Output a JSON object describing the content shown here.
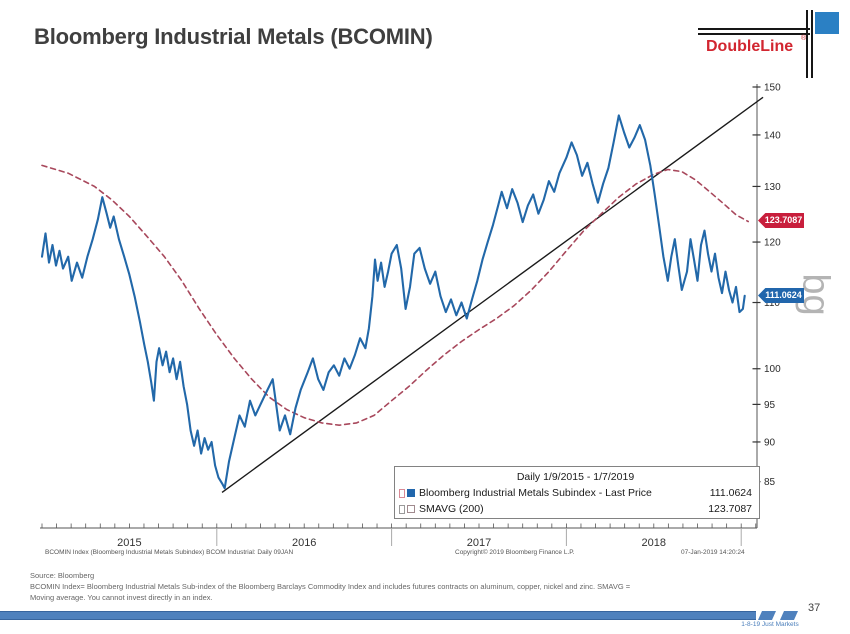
{
  "header": {
    "title": "Bloomberg Industrial Metals (BCOMIN)",
    "logo_text": "DoubleLine",
    "logo_reg": "®"
  },
  "chart_data": {
    "type": "line",
    "title": "Bloomberg Industrial Metals (BCOMIN)",
    "x_axis": {
      "start_label_year": "2015",
      "years": [
        {
          "label": "2015",
          "center_t": 0.5
        },
        {
          "label": "2016",
          "center_t": 1.5
        },
        {
          "label": "2017",
          "center_t": 2.5
        },
        {
          "label": "2018",
          "center_t": 3.5
        }
      ],
      "year_boundaries_t": [
        1,
        2,
        3,
        4
      ],
      "minor_ticks_months": 49
    },
    "y_axis": {
      "scale": "log",
      "ticks": [
        85,
        90,
        95,
        100,
        110,
        120,
        130,
        140,
        150
      ],
      "range": [
        79.5,
        152
      ]
    },
    "series": [
      {
        "name": "Bloomberg Industrial Metals Subindex - Last Price",
        "color": "#2268a9",
        "style": "solid",
        "last_value": 111.0624,
        "points": [
          [
            0.0,
            117.5
          ],
          [
            0.02,
            121.5
          ],
          [
            0.04,
            116.5
          ],
          [
            0.06,
            119.5
          ],
          [
            0.08,
            116.0
          ],
          [
            0.1,
            118.5
          ],
          [
            0.12,
            115.5
          ],
          [
            0.15,
            117.5
          ],
          [
            0.17,
            113.5
          ],
          [
            0.2,
            116.5
          ],
          [
            0.23,
            114.0
          ],
          [
            0.26,
            117.5
          ],
          [
            0.29,
            120.5
          ],
          [
            0.32,
            124.0
          ],
          [
            0.345,
            128.0
          ],
          [
            0.37,
            125.0
          ],
          [
            0.39,
            122.5
          ],
          [
            0.41,
            124.5
          ],
          [
            0.44,
            120.5
          ],
          [
            0.47,
            117.5
          ],
          [
            0.5,
            114.5
          ],
          [
            0.53,
            111.0
          ],
          [
            0.56,
            107.0
          ],
          [
            0.585,
            103.5
          ],
          [
            0.605,
            101.0
          ],
          [
            0.625,
            98.0
          ],
          [
            0.64,
            95.5
          ],
          [
            0.655,
            101.0
          ],
          [
            0.67,
            103.0
          ],
          [
            0.69,
            100.5
          ],
          [
            0.71,
            102.5
          ],
          [
            0.73,
            99.5
          ],
          [
            0.75,
            101.5
          ],
          [
            0.77,
            98.5
          ],
          [
            0.79,
            101.0
          ],
          [
            0.81,
            97.5
          ],
          [
            0.83,
            95.0
          ],
          [
            0.85,
            91.5
          ],
          [
            0.87,
            89.5
          ],
          [
            0.89,
            91.5
          ],
          [
            0.91,
            88.5
          ],
          [
            0.93,
            90.5
          ],
          [
            0.95,
            89.0
          ],
          [
            0.97,
            90.0
          ],
          [
            0.99,
            87.0
          ],
          [
            1.01,
            85.5
          ],
          [
            1.03,
            84.8
          ],
          [
            1.045,
            84.2
          ],
          [
            1.07,
            87.5
          ],
          [
            1.1,
            90.5
          ],
          [
            1.13,
            93.5
          ],
          [
            1.16,
            92.0
          ],
          [
            1.19,
            95.5
          ],
          [
            1.22,
            93.5
          ],
          [
            1.25,
            95.0
          ],
          [
            1.28,
            96.5
          ],
          [
            1.32,
            98.5
          ],
          [
            1.36,
            91.5
          ],
          [
            1.39,
            93.5
          ],
          [
            1.42,
            91.0
          ],
          [
            1.45,
            94.5
          ],
          [
            1.48,
            97.0
          ],
          [
            1.52,
            99.5
          ],
          [
            1.55,
            101.5
          ],
          [
            1.58,
            98.5
          ],
          [
            1.61,
            97.0
          ],
          [
            1.64,
            99.5
          ],
          [
            1.67,
            100.5
          ],
          [
            1.7,
            99.0
          ],
          [
            1.73,
            101.5
          ],
          [
            1.76,
            100.0
          ],
          [
            1.79,
            102.0
          ],
          [
            1.82,
            104.5
          ],
          [
            1.85,
            103.0
          ],
          [
            1.87,
            106.0
          ],
          [
            1.89,
            111.0
          ],
          [
            1.905,
            117.0
          ],
          [
            1.92,
            113.5
          ],
          [
            1.94,
            116.5
          ],
          [
            1.96,
            112.5
          ],
          [
            1.98,
            115.0
          ],
          [
            2.0,
            118.0
          ],
          [
            2.03,
            119.5
          ],
          [
            2.055,
            115.5
          ],
          [
            2.08,
            109.0
          ],
          [
            2.105,
            112.5
          ],
          [
            2.13,
            118.0
          ],
          [
            2.16,
            119.0
          ],
          [
            2.19,
            115.5
          ],
          [
            2.22,
            113.0
          ],
          [
            2.25,
            115.0
          ],
          [
            2.28,
            111.0
          ],
          [
            2.31,
            108.5
          ],
          [
            2.34,
            110.5
          ],
          [
            2.37,
            108.0
          ],
          [
            2.4,
            110.0
          ],
          [
            2.43,
            107.5
          ],
          [
            2.46,
            110.5
          ],
          [
            2.49,
            113.5
          ],
          [
            2.52,
            117.0
          ],
          [
            2.55,
            120.0
          ],
          [
            2.58,
            123.0
          ],
          [
            2.61,
            126.5
          ],
          [
            2.63,
            129.0
          ],
          [
            2.66,
            126.0
          ],
          [
            2.69,
            129.5
          ],
          [
            2.72,
            127.0
          ],
          [
            2.75,
            123.5
          ],
          [
            2.78,
            126.5
          ],
          [
            2.81,
            128.5
          ],
          [
            2.84,
            125.0
          ],
          [
            2.87,
            127.5
          ],
          [
            2.9,
            131.0
          ],
          [
            2.93,
            129.0
          ],
          [
            2.96,
            132.5
          ],
          [
            3.0,
            135.5
          ],
          [
            3.03,
            138.5
          ],
          [
            3.06,
            136.0
          ],
          [
            3.09,
            132.0
          ],
          [
            3.12,
            134.5
          ],
          [
            3.15,
            130.5
          ],
          [
            3.18,
            127.0
          ],
          [
            3.21,
            130.5
          ],
          [
            3.24,
            133.5
          ],
          [
            3.27,
            138.5
          ],
          [
            3.3,
            144.0
          ],
          [
            3.33,
            140.5
          ],
          [
            3.36,
            137.5
          ],
          [
            3.39,
            139.5
          ],
          [
            3.42,
            142.0
          ],
          [
            3.45,
            139.0
          ],
          [
            3.48,
            134.0
          ],
          [
            3.505,
            128.5
          ],
          [
            3.53,
            123.0
          ],
          [
            3.555,
            117.5
          ],
          [
            3.58,
            113.5
          ],
          [
            3.6,
            117.5
          ],
          [
            3.62,
            120.5
          ],
          [
            3.64,
            116.0
          ],
          [
            3.66,
            112.0
          ],
          [
            3.69,
            115.0
          ],
          [
            3.71,
            120.5
          ],
          [
            3.73,
            117.0
          ],
          [
            3.75,
            113.5
          ],
          [
            3.77,
            119.5
          ],
          [
            3.79,
            122.0
          ],
          [
            3.81,
            118.0
          ],
          [
            3.83,
            115.0
          ],
          [
            3.85,
            118.0
          ],
          [
            3.87,
            114.0
          ],
          [
            3.89,
            111.5
          ],
          [
            3.91,
            115.0
          ],
          [
            3.93,
            112.0
          ],
          [
            3.95,
            110.0
          ],
          [
            3.97,
            112.5
          ],
          [
            3.99,
            108.5
          ],
          [
            4.01,
            109.0
          ],
          [
            4.02,
            111.0624
          ]
        ]
      },
      {
        "name": "SMAVG (200)",
        "color": "#a8485c",
        "style": "dashed",
        "last_value": 123.7087,
        "points": [
          [
            0.0,
            134.0
          ],
          [
            0.15,
            132.5
          ],
          [
            0.3,
            130.0
          ],
          [
            0.4,
            127.5
          ],
          [
            0.5,
            124.5
          ],
          [
            0.6,
            121.0
          ],
          [
            0.7,
            117.5
          ],
          [
            0.8,
            113.5
          ],
          [
            0.9,
            109.0
          ],
          [
            1.0,
            105.0
          ],
          [
            1.1,
            101.5
          ],
          [
            1.2,
            98.5
          ],
          [
            1.3,
            96.0
          ],
          [
            1.4,
            94.3
          ],
          [
            1.5,
            93.2
          ],
          [
            1.6,
            92.5
          ],
          [
            1.7,
            92.2
          ],
          [
            1.8,
            92.5
          ],
          [
            1.9,
            93.5
          ],
          [
            2.0,
            95.5
          ],
          [
            2.1,
            97.5
          ],
          [
            2.2,
            99.8
          ],
          [
            2.3,
            102.0
          ],
          [
            2.4,
            104.0
          ],
          [
            2.5,
            105.8
          ],
          [
            2.6,
            107.5
          ],
          [
            2.7,
            109.5
          ],
          [
            2.8,
            112.0
          ],
          [
            2.9,
            115.0
          ],
          [
            3.0,
            118.5
          ],
          [
            3.1,
            122.0
          ],
          [
            3.2,
            125.0
          ],
          [
            3.3,
            128.0
          ],
          [
            3.4,
            130.5
          ],
          [
            3.5,
            132.3
          ],
          [
            3.58,
            133.2
          ],
          [
            3.66,
            132.8
          ],
          [
            3.74,
            131.2
          ],
          [
            3.82,
            129.0
          ],
          [
            3.9,
            126.8
          ],
          [
            3.97,
            124.8
          ],
          [
            4.04,
            123.6
          ]
        ]
      }
    ],
    "trend_line": {
      "color": "#1a1a1a",
      "from": [
        1.03,
        83.7
      ],
      "to": [
        4.125,
        147.8
      ]
    },
    "watermark": "bg",
    "badges": {
      "smavg_value": "123.7087",
      "last_value": "111.0624"
    },
    "legend": {
      "period": "Daily 1/9/2015 - 1/7/2019",
      "rows": [
        {
          "label": "Bloomberg Industrial Metals Subindex - Last Price",
          "value": "111.0624"
        },
        {
          "label": "SMAVG (200)",
          "value": "123.7087"
        }
      ]
    },
    "footnotes": {
      "left": "BCOMIN Index (Bloomberg Industrial Metals Subindex) BCOM Industrial:  Daily 09JAN",
      "center": "Copyright© 2019 Bloomberg Finance L.P.",
      "right": "07-Jan-2019 14:20:24"
    }
  },
  "footer": {
    "source": "Source: Bloomberg",
    "disclaimer": [
      "BCOMIN  Index= Bloomberg Industrial Metals Sub-index of the Bloomberg Barclays Commodity Index and includes futures contracts on aluminum, copper, nickel and zinc. SMAVG =",
      "Moving average. You cannot invest directly in an index."
    ],
    "caption": "1-8-19 Just Markets",
    "page_number": "37"
  }
}
